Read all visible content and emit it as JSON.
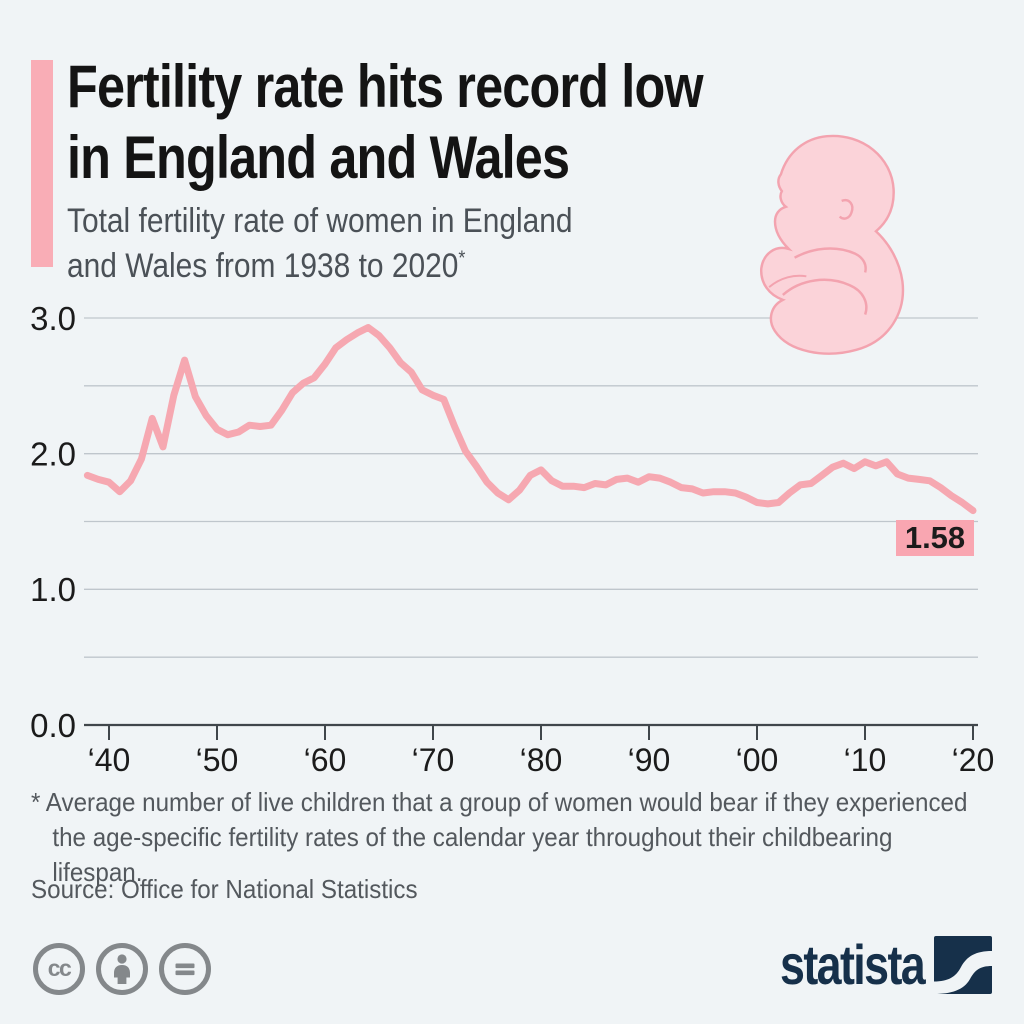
{
  "page": {
    "background": "#f0f4f6"
  },
  "header": {
    "accent_color": "#f9adb6",
    "title": "Fertility rate hits record low in England and Wales",
    "title_lines": [
      "Fertility rate hits record low",
      "in England and Wales"
    ],
    "subtitle_lines": [
      "Total fertility rate of women in England",
      "and Wales from 1938 to 2020"
    ],
    "subtitle_footnote_marker": "*"
  },
  "chart_data": {
    "type": "line",
    "title": "Total fertility rate of women in England and Wales from 1938 to 2020",
    "series_name": "Total fertility rate",
    "xlabel": "",
    "ylabel": "",
    "grid": true,
    "legend_position": "none",
    "xlim": [
      1938,
      2020
    ],
    "ylim": [
      0.0,
      3.0
    ],
    "x": [
      1938,
      1939,
      1940,
      1941,
      1942,
      1943,
      1944,
      1945,
      1946,
      1947,
      1948,
      1949,
      1950,
      1951,
      1952,
      1953,
      1954,
      1955,
      1956,
      1957,
      1958,
      1959,
      1960,
      1961,
      1962,
      1963,
      1964,
      1965,
      1966,
      1967,
      1968,
      1969,
      1970,
      1971,
      1972,
      1973,
      1974,
      1975,
      1976,
      1977,
      1978,
      1979,
      1980,
      1981,
      1982,
      1983,
      1984,
      1985,
      1986,
      1987,
      1988,
      1989,
      1990,
      1991,
      1992,
      1993,
      1994,
      1995,
      1996,
      1997,
      1998,
      1999,
      2000,
      2001,
      2002,
      2003,
      2004,
      2005,
      2006,
      2007,
      2008,
      2009,
      2010,
      2011,
      2012,
      2013,
      2014,
      2015,
      2016,
      2017,
      2018,
      2019,
      2020
    ],
    "values": [
      1.84,
      1.81,
      1.79,
      1.72,
      1.8,
      1.96,
      2.26,
      2.05,
      2.43,
      2.69,
      2.42,
      2.28,
      2.18,
      2.14,
      2.16,
      2.21,
      2.2,
      2.21,
      2.32,
      2.45,
      2.52,
      2.56,
      2.66,
      2.78,
      2.84,
      2.89,
      2.93,
      2.87,
      2.78,
      2.67,
      2.6,
      2.47,
      2.43,
      2.4,
      2.2,
      2.02,
      1.91,
      1.79,
      1.71,
      1.66,
      1.73,
      1.84,
      1.88,
      1.8,
      1.76,
      1.76,
      1.75,
      1.78,
      1.77,
      1.81,
      1.82,
      1.79,
      1.83,
      1.82,
      1.79,
      1.75,
      1.74,
      1.71,
      1.72,
      1.72,
      1.71,
      1.68,
      1.64,
      1.63,
      1.64,
      1.71,
      1.77,
      1.78,
      1.84,
      1.9,
      1.93,
      1.89,
      1.94,
      1.91,
      1.94,
      1.85,
      1.82,
      1.81,
      1.8,
      1.75,
      1.69,
      1.64,
      1.58
    ],
    "y_axis_labels": [
      {
        "value": 3.0,
        "label": "3.0"
      },
      {
        "value": 2.0,
        "label": "2.0"
      },
      {
        "value": 1.0,
        "label": "1.0"
      },
      {
        "value": 0.0,
        "label": "0.0"
      }
    ],
    "y_gridlines": [
      3.0,
      2.5,
      2.0,
      1.5,
      1.0,
      0.5
    ],
    "x_ticks": [
      {
        "year": 1940,
        "label": "‘40"
      },
      {
        "year": 1950,
        "label": "‘50"
      },
      {
        "year": 1960,
        "label": "‘60"
      },
      {
        "year": 1970,
        "label": "‘70"
      },
      {
        "year": 1980,
        "label": "‘80"
      },
      {
        "year": 1990,
        "label": "‘90"
      },
      {
        "year": 2000,
        "label": "‘00"
      },
      {
        "year": 2010,
        "label": "‘10"
      },
      {
        "year": 2020,
        "label": "‘20"
      }
    ],
    "end_label": {
      "text": "1.58",
      "year": 2020,
      "value": 1.58
    },
    "colors": {
      "line": "#f6a8b1",
      "end_label_bg": "#f9a6b1",
      "end_label_text": "#111111",
      "grid": "#bfc6cc",
      "axis": "#40464b",
      "tick_text": "#1b1b1b"
    }
  },
  "footnote": {
    "marker": "*",
    "text": "Average number of live children that a group of women would bear if they experienced the age-specific fertility rates of the calendar year throughout their childbearing lifespan."
  },
  "source": {
    "text": "Source: Office for National Statistics"
  },
  "footer": {
    "license_icons": [
      {
        "name": "cc-icon",
        "label": "cc"
      },
      {
        "name": "attribution-person-icon",
        "label": "by"
      },
      {
        "name": "equals-icon",
        "label": "nd"
      }
    ],
    "brand": {
      "wordmark": "statista",
      "color": "#16304a"
    }
  }
}
